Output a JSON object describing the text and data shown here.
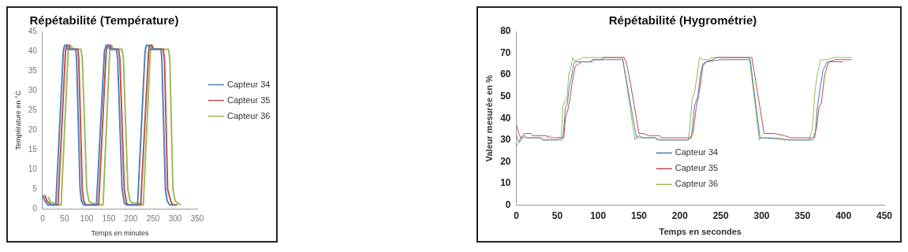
{
  "chart_data": [
    {
      "type": "line",
      "title": "Répétabilité (Température)",
      "xlabel": "Temps en minutes",
      "ylabel": "Température en °C",
      "xlim": [
        0,
        350
      ],
      "xticks": [
        0,
        50,
        100,
        150,
        200,
        250,
        300,
        350
      ],
      "ylim": [
        0,
        45
      ],
      "yticks": [
        0,
        5,
        10,
        15,
        20,
        25,
        30,
        35,
        40,
        45
      ],
      "grid": false,
      "legend": "right",
      "marker": "none",
      "line_style": "solid",
      "series": [
        {
          "name": "Capteur 34",
          "color": "#4f81bd",
          "x": [
            0,
            5,
            12,
            28,
            30,
            47,
            50,
            55,
            57,
            75,
            77,
            85,
            88,
            93,
            120,
            122,
            140,
            144,
            150,
            152,
            167,
            170,
            180,
            185,
            190,
            213,
            215,
            232,
            235,
            240,
            242,
            268,
            270,
            278,
            282,
            288,
            295
          ],
          "values": [
            3.5,
            2,
            1,
            1,
            1,
            40,
            41.5,
            41.5,
            40.5,
            40.5,
            38,
            5,
            2,
            1,
            1,
            1,
            40,
            41.5,
            41.5,
            40.5,
            40.5,
            38,
            5,
            1.5,
            1,
            1,
            1,
            40,
            41.5,
            41.5,
            40.5,
            40.5,
            38,
            5,
            2,
            1,
            1
          ]
        },
        {
          "name": "Capteur 35",
          "color": "#c0504d",
          "x": [
            5,
            10,
            15,
            20,
            32,
            35,
            52,
            55,
            60,
            62,
            80,
            82,
            90,
            93,
            98,
            125,
            127,
            144,
            148,
            153,
            155,
            172,
            175,
            185,
            190,
            195,
            220,
            222,
            240,
            243,
            247,
            249,
            273,
            276,
            283,
            290,
            295,
            305
          ],
          "values": [
            3.5,
            2,
            1.5,
            1,
            1,
            1,
            40,
            41.5,
            41.5,
            40.5,
            40.5,
            38,
            5,
            2,
            1,
            1,
            1,
            40,
            41.5,
            41.5,
            40.5,
            40.5,
            38,
            5,
            1.5,
            1,
            1,
            1,
            40,
            41.5,
            41.5,
            40.5,
            40.5,
            38,
            5,
            2,
            1,
            1
          ]
        },
        {
          "name": "Capteur 36",
          "color": "#9bbb59",
          "x": [
            13,
            17,
            22,
            28,
            30,
            40,
            42,
            58,
            62,
            66,
            70,
            87,
            90,
            100,
            105,
            110,
            135,
            137,
            152,
            156,
            160,
            180,
            183,
            193,
            198,
            203,
            213,
            228,
            244,
            248,
            252,
            285,
            288,
            295,
            300,
            305,
            313
          ],
          "values": [
            3,
            2,
            1.5,
            1.5,
            1,
            1,
            1,
            40,
            41.5,
            41,
            40.5,
            40.5,
            38,
            5,
            2,
            1.5,
            1,
            1,
            40,
            41.5,
            40.5,
            40.5,
            38,
            5,
            2,
            1.5,
            1.5,
            1,
            40,
            41.5,
            40.5,
            40.5,
            38,
            5,
            2,
            1.5,
            1
          ]
        }
      ]
    },
    {
      "type": "line",
      "title": "Répétabilité (Hygrométrie)",
      "xlabel": "Temps en secondes",
      "ylabel": "Valeur mesurée en %",
      "xlim": [
        0,
        450
      ],
      "xticks": [
        0,
        50,
        100,
        150,
        200,
        250,
        300,
        350,
        400,
        450
      ],
      "ylim": [
        0,
        80
      ],
      "yticks": [
        0,
        10,
        20,
        30,
        40,
        50,
        60,
        70,
        80
      ],
      "grid": false,
      "legend": "bottom left",
      "marker": "none",
      "line_style": "solid",
      "series": [
        {
          "name": "Capteur 34",
          "color": "#4a7ebb",
          "x": [
            0,
            2,
            4,
            7,
            10,
            13,
            30,
            32,
            55,
            57,
            60,
            62,
            65,
            68,
            70,
            72,
            80,
            93,
            95,
            130,
            147,
            150,
            155,
            170,
            175,
            210,
            214,
            218,
            222,
            225,
            228,
            232,
            250,
            286,
            298,
            303,
            333,
            362,
            365,
            368,
            372,
            375,
            380,
            400
          ],
          "values": [
            32,
            30,
            29,
            31,
            32,
            31,
            31,
            30,
            30,
            31,
            45,
            46,
            55,
            60,
            65,
            66,
            66,
            66,
            67,
            67,
            31,
            32,
            31,
            31,
            30,
            30,
            31,
            46,
            50,
            60,
            65,
            66,
            67,
            67,
            31,
            31,
            30,
            30,
            31,
            45,
            55,
            62,
            66,
            66
          ]
        },
        {
          "name": "Capteur 35",
          "color": "#be4b48",
          "x": [
            0,
            3,
            5,
            8,
            10,
            18,
            20,
            37,
            38,
            40,
            42,
            58,
            60,
            63,
            66,
            68,
            72,
            76,
            80,
            90,
            93,
            105,
            106,
            132,
            135,
            140,
            150,
            155,
            162,
            175,
            177,
            212,
            216,
            220,
            225,
            228,
            232,
            240,
            245,
            288,
            303,
            315,
            328,
            335,
            363,
            367,
            370,
            373,
            377,
            382,
            390,
            410
          ],
          "values": [
            37,
            33,
            31,
            32,
            33,
            33,
            32,
            32,
            31,
            32,
            31,
            31,
            40,
            44,
            50,
            56,
            64,
            65,
            66,
            66,
            67,
            67,
            68,
            68,
            65,
            55,
            33,
            33,
            32,
            32,
            31,
            31,
            33,
            45,
            55,
            64,
            66,
            67,
            68,
            68,
            33,
            33,
            32,
            31,
            31,
            35,
            45,
            47,
            60,
            66,
            67,
            67
          ]
        },
        {
          "name": "Capteur 36",
          "color": "#98b954",
          "x": [
            0,
            3,
            5,
            30,
            33,
            50,
            52,
            55,
            57,
            60,
            62,
            64,
            67,
            69,
            72,
            75,
            78,
            80,
            130,
            145,
            148,
            170,
            172,
            210,
            212,
            215,
            218,
            221,
            224,
            228,
            236,
            238,
            285,
            297,
            300,
            320,
            333,
            358,
            362,
            365,
            368,
            372,
            380,
            388,
            410
          ],
          "values": [
            27,
            29,
            31,
            31,
            30,
            30,
            31,
            31,
            46,
            48,
            50,
            60,
            64,
            68,
            66,
            67,
            67,
            68,
            68,
            30,
            31,
            31,
            30,
            30,
            35,
            49,
            52,
            60,
            68,
            67,
            67,
            68,
            68,
            30,
            31,
            31,
            30,
            30,
            35,
            52,
            60,
            67,
            67,
            68,
            68
          ]
        }
      ]
    }
  ]
}
